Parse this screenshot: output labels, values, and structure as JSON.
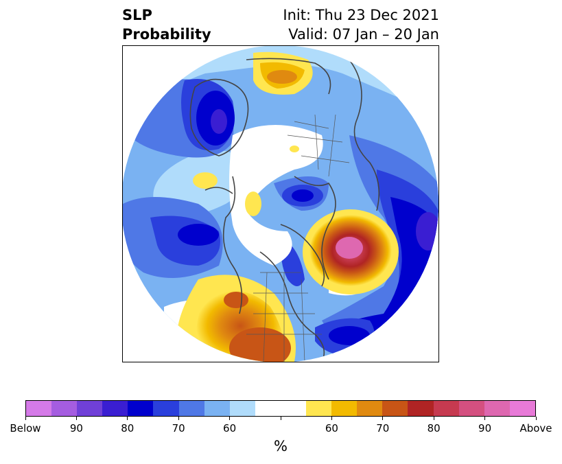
{
  "title": {
    "left_line1": "SLP",
    "left_line2": "Probability",
    "right_line1": "Init: Thu 23 Dec 2021",
    "right_line2": "Valid: 07 Jan – 20 Jan"
  },
  "colorbar": {
    "colors": [
      "#d57ae8",
      "#a55de0",
      "#7040d8",
      "#3a1ed2",
      "#0000cd",
      "#2a3fdc",
      "#4f78e6",
      "#7ab2f2",
      "#b0dcfb",
      "#ffffff",
      "#ffffff",
      "#ffe650",
      "#f2ba00",
      "#e08a10",
      "#c85516",
      "#b02424",
      "#c63a50",
      "#d45080",
      "#de68b0",
      "#e87ad8"
    ],
    "tick_labels": [
      "Below",
      "90",
      "80",
      "70",
      "60",
      "",
      "60",
      "70",
      "80",
      "90",
      "Above"
    ],
    "unit_label": "%"
  }
}
